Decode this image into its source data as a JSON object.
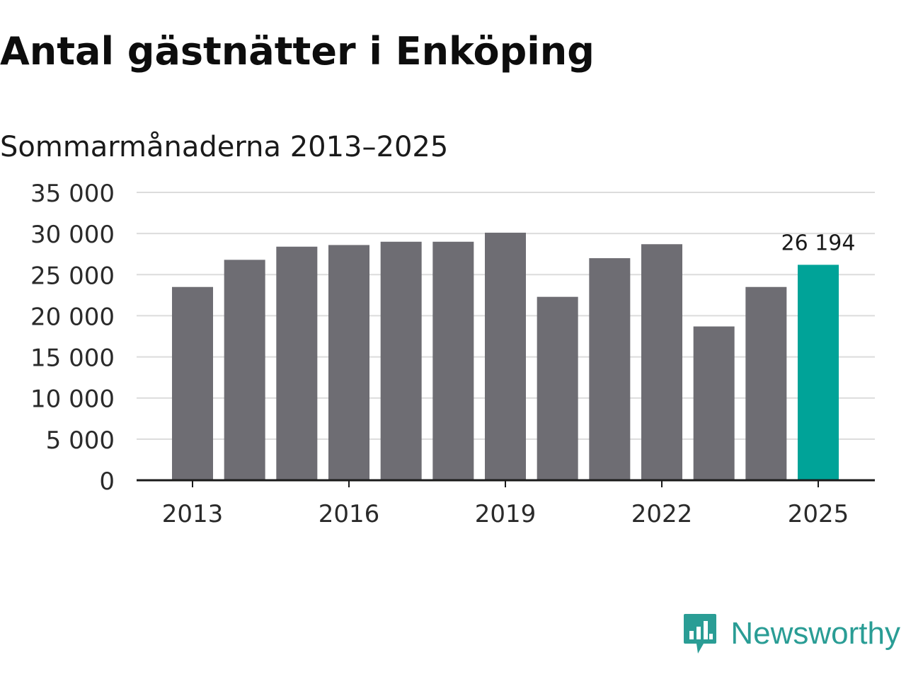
{
  "colors": {
    "bar": "#6e6d73",
    "highlight": "#00a398",
    "grid": "#dcdcdc",
    "axis": "#1a1a1a",
    "brand": "#2a9d95"
  },
  "brand": {
    "name": "Newsworthy",
    "icon": "newsworthy-logo-icon"
  },
  "chart_data": {
    "type": "bar",
    "title": "Antal gästnätter i Enköping",
    "subtitle": "Sommarmånaderna 2013–2025",
    "categories": [
      "2013",
      "2014",
      "2015",
      "2016",
      "2017",
      "2018",
      "2019",
      "2020",
      "2021",
      "2022",
      "2023",
      "2024",
      "2025"
    ],
    "values": [
      23500,
      26800,
      28400,
      28600,
      29000,
      29000,
      30100,
      22300,
      27000,
      28700,
      18700,
      23500,
      26194
    ],
    "highlight_index": 12,
    "highlight_label": "26 194",
    "ylim": [
      0,
      35000
    ],
    "yticks": [
      0,
      5000,
      10000,
      15000,
      20000,
      25000,
      30000,
      35000
    ],
    "ytick_labels": [
      "0",
      "5 000",
      "10 000",
      "15 000",
      "20 000",
      "25 000",
      "30 000",
      "35 000"
    ],
    "xtick_labels": [
      "2013",
      "2016",
      "2019",
      "2022",
      "2025"
    ],
    "grid": true,
    "legend": "none"
  }
}
